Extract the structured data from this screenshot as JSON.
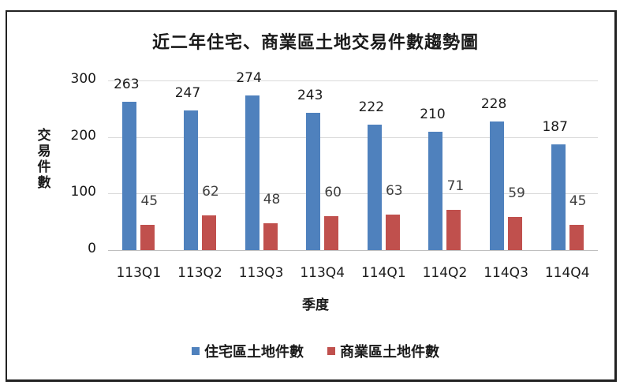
{
  "chart_data": {
    "type": "bar",
    "title": "近二年住宅、商業區土地交易件數趨勢圖",
    "xlabel": "季度",
    "ylabel": "交易件數",
    "ylim": [
      0,
      300
    ],
    "yticks": [
      0,
      100,
      200,
      300
    ],
    "grid": true,
    "legend_position": "bottom",
    "categories": [
      "113Q1",
      "113Q2",
      "113Q3",
      "113Q4",
      "114Q1",
      "114Q2",
      "114Q3",
      "114Q4"
    ],
    "series": [
      {
        "name": "住宅區土地件數",
        "color": "#4f81bd",
        "values": [
          263,
          247,
          274,
          243,
          222,
          210,
          228,
          187
        ]
      },
      {
        "name": "商業區土地件數",
        "color": "#c0504d",
        "values": [
          45,
          62,
          48,
          60,
          63,
          71,
          59,
          45
        ]
      }
    ]
  }
}
